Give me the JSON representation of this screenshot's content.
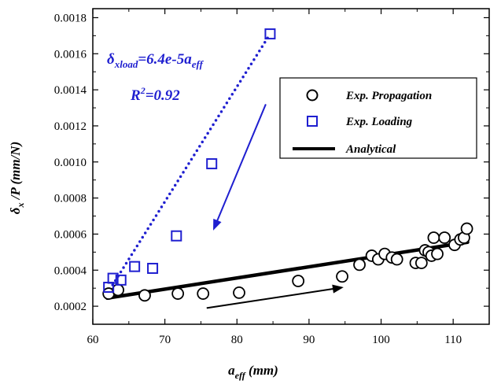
{
  "chart_data": {
    "type": "scatter",
    "xlabel": {
      "main": "a",
      "sub": "eff",
      "unit": " (mm)"
    },
    "ylabel": {
      "main": "δ",
      "sub": "x",
      "rest": " /P (mm/N)"
    },
    "xlim": [
      60,
      115
    ],
    "ylim": [
      0.0001,
      0.00185
    ],
    "xticks": [
      60,
      70,
      80,
      90,
      100,
      110
    ],
    "yticks": [
      0.0002,
      0.0004,
      0.0006,
      0.0008,
      0.001,
      0.0012,
      0.0014,
      0.0016,
      0.0018
    ],
    "xtick_labels": [
      "60",
      "70",
      "80",
      "90",
      "100",
      "110"
    ],
    "ytick_labels": [
      "0.0002",
      "0.0004",
      "0.0006",
      "0.0008",
      "0.0010",
      "0.0012",
      "0.0014",
      "0.0016",
      "0.0018"
    ],
    "grid": false,
    "legend_position": "right",
    "series": [
      {
        "name": "Exp. Propagation",
        "marker": "circle",
        "color": "#000000",
        "x": [
          62.2,
          63.5,
          67.2,
          71.8,
          75.3,
          80.3,
          88.5,
          94.6,
          97.0,
          98.7,
          99.6,
          100.5,
          101.5,
          102.2,
          104.8,
          105.6,
          106.1,
          106.6,
          107.0,
          107.3,
          107.8,
          108.8,
          110.2,
          111.0,
          111.5,
          111.9
        ],
        "y": [
          0.00027,
          0.00029,
          0.00026,
          0.00027,
          0.00027,
          0.000275,
          0.00034,
          0.000365,
          0.00043,
          0.00048,
          0.00046,
          0.00049,
          0.00047,
          0.00046,
          0.00044,
          0.00044,
          0.00051,
          0.0005,
          0.00048,
          0.00058,
          0.00049,
          0.00058,
          0.00054,
          0.00057,
          0.00058,
          0.00063
        ]
      },
      {
        "name": "Exp. Loading",
        "marker": "square",
        "color": "#1f1fd0",
        "x": [
          62.2,
          62.8,
          63.9,
          65.8,
          68.3,
          71.6,
          76.5,
          84.6
        ],
        "y": [
          0.000305,
          0.000355,
          0.000345,
          0.00042,
          0.00041,
          0.00059,
          0.00099,
          0.00171
        ]
      },
      {
        "name": "Analytical",
        "type": "line",
        "color": "#000000",
        "x": [
          62,
          112
        ],
        "y": [
          0.000245,
          0.000555
        ]
      },
      {
        "name": "",
        "type": "dotted-line",
        "color": "#1f1fd0",
        "x": [
          62,
          84.6
        ],
        "y": [
          0.00027,
          0.00171
        ]
      }
    ],
    "annotations": {
      "equation": {
        "delta": "δ",
        "sub1": "xload",
        "mid": "=6.4e-5a",
        "sub2": "eff"
      },
      "r2": {
        "pre": "R",
        "sup": "2",
        "post": "=0.92"
      },
      "arrows": [
        {
          "color": "#1f1fd0",
          "from": [
            84.0,
            0.00132
          ],
          "to": [
            76.7,
            0.00062
          ]
        },
        {
          "color": "#000000",
          "from": [
            75.8,
            0.00019
          ],
          "to": [
            94.8,
            0.000305
          ]
        }
      ]
    }
  },
  "colors": {
    "axis": "#000000",
    "accent": "#1f1fd0"
  }
}
